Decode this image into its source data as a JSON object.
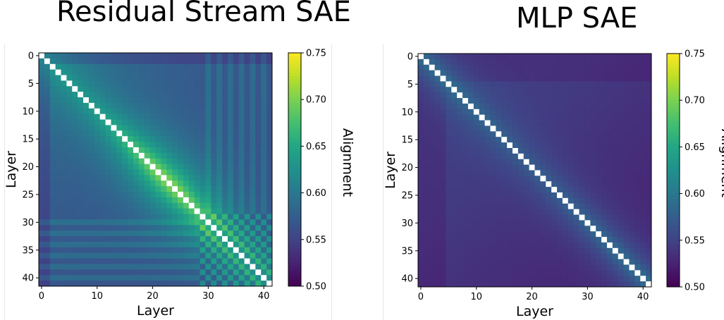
{
  "chart_data": [
    {
      "type": "heatmap",
      "title": "Residual Stream SAE",
      "xlabel": "Layer",
      "ylabel": "Layer",
      "colorbar_label": "Alignment",
      "n": 42,
      "x_ticks": [
        0,
        10,
        20,
        30,
        40
      ],
      "y_ticks": [
        0,
        5,
        10,
        15,
        20,
        25,
        30,
        35,
        40
      ],
      "color_range": [
        0.5,
        0.75
      ],
      "colorbar_ticks": [
        "0.50",
        "0.55",
        "0.60",
        "0.65",
        "0.70",
        "0.75"
      ],
      "colormap": "viridis",
      "diagonal_color": "#ffffff",
      "description_values": {
        "near_diagonal_peak": 0.72,
        "far_off_diagonal_min": 0.53,
        "upper_block_30_41_checker_high": 0.7,
        "upper_block_30_41_checker_low": 0.62
      }
    },
    {
      "type": "heatmap",
      "title": "MLP SAE",
      "xlabel": "Layer",
      "ylabel": "Layer",
      "colorbar_label": "Alignment",
      "n": 42,
      "x_ticks": [
        0,
        10,
        20,
        30,
        40
      ],
      "y_ticks": [
        0,
        5,
        10,
        15,
        20,
        25,
        30,
        35,
        40
      ],
      "color_range": [
        0.5,
        0.75
      ],
      "colorbar_ticks": [
        "0.50",
        "0.55",
        "0.60",
        "0.65",
        "0.70",
        "0.75"
      ],
      "colormap": "viridis",
      "diagonal_color": "#ffffff",
      "description_values": {
        "near_diagonal_peak": 0.6,
        "far_off_diagonal_min": 0.51
      }
    }
  ]
}
